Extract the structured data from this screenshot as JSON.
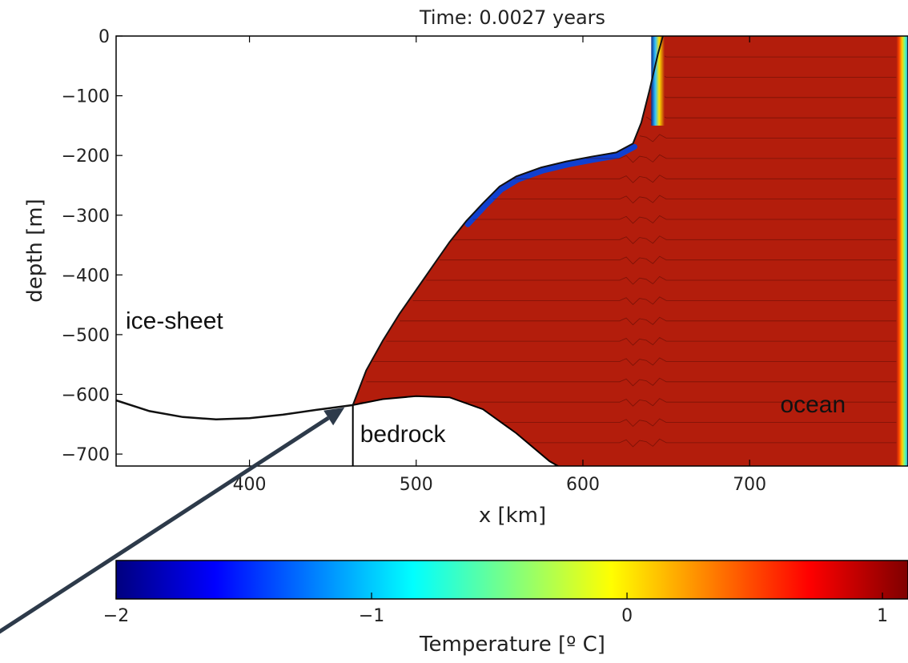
{
  "chart_data": {
    "type": "heatmap",
    "title": "Time: 0.0027 years",
    "xlabel": "x [km]",
    "ylabel": "depth [m]",
    "xlim": [
      320,
      795
    ],
    "ylim": [
      -720,
      0
    ],
    "x_ticks": [
      400,
      500,
      600,
      700
    ],
    "x_tick_labels": [
      "400",
      "500",
      "600",
      "700"
    ],
    "y_ticks": [
      0,
      -100,
      -200,
      -300,
      -400,
      -500,
      -600,
      -700
    ],
    "y_tick_labels": [
      "0",
      "−100",
      "−200",
      "−300",
      "−400",
      "−500",
      "−600",
      "−700"
    ],
    "annotations": [
      {
        "text": "ice-sheet",
        "x": 355,
        "y": -490
      },
      {
        "text": "bedrock",
        "x": 492,
        "y": -680
      },
      {
        "text": "ocean",
        "x": 738,
        "y": -630
      }
    ],
    "grounding_line_arrow_target": {
      "x": 457,
      "y": -622
    },
    "ice_base_profile": {
      "x": [
        462,
        470,
        480,
        490,
        500,
        510,
        520,
        530,
        540,
        550,
        560,
        575,
        590,
        605,
        620,
        630,
        635,
        640,
        645,
        648
      ],
      "y": [
        -618,
        -560,
        -510,
        -465,
        -425,
        -385,
        -345,
        -310,
        -280,
        -252,
        -235,
        -220,
        -210,
        -202,
        -195,
        -180,
        -145,
        -90,
        -30,
        0
      ]
    },
    "ice_sheet_lower_surface": {
      "x": [
        320,
        340,
        360,
        380,
        400,
        420,
        440,
        462
      ],
      "y": [
        -610,
        -628,
        -638,
        -642,
        -640,
        -634,
        -626,
        -618
      ]
    },
    "bedrock_profile": {
      "x": [
        462,
        480,
        500,
        520,
        540,
        560,
        580,
        585
      ],
      "y": [
        -618,
        -608,
        -603,
        -605,
        -625,
        -665,
        -712,
        -720
      ]
    },
    "colorbar": {
      "label": "Temperature [º C]",
      "min": -2,
      "max": 1.1,
      "ticks": [
        -2,
        -1,
        0,
        1
      ],
      "tick_labels": [
        "−2",
        "−1",
        "0",
        "1"
      ],
      "colormap": "jet"
    },
    "dominant_ocean_temperature": 1.0,
    "cold_layer_temperature": -1.5
  }
}
